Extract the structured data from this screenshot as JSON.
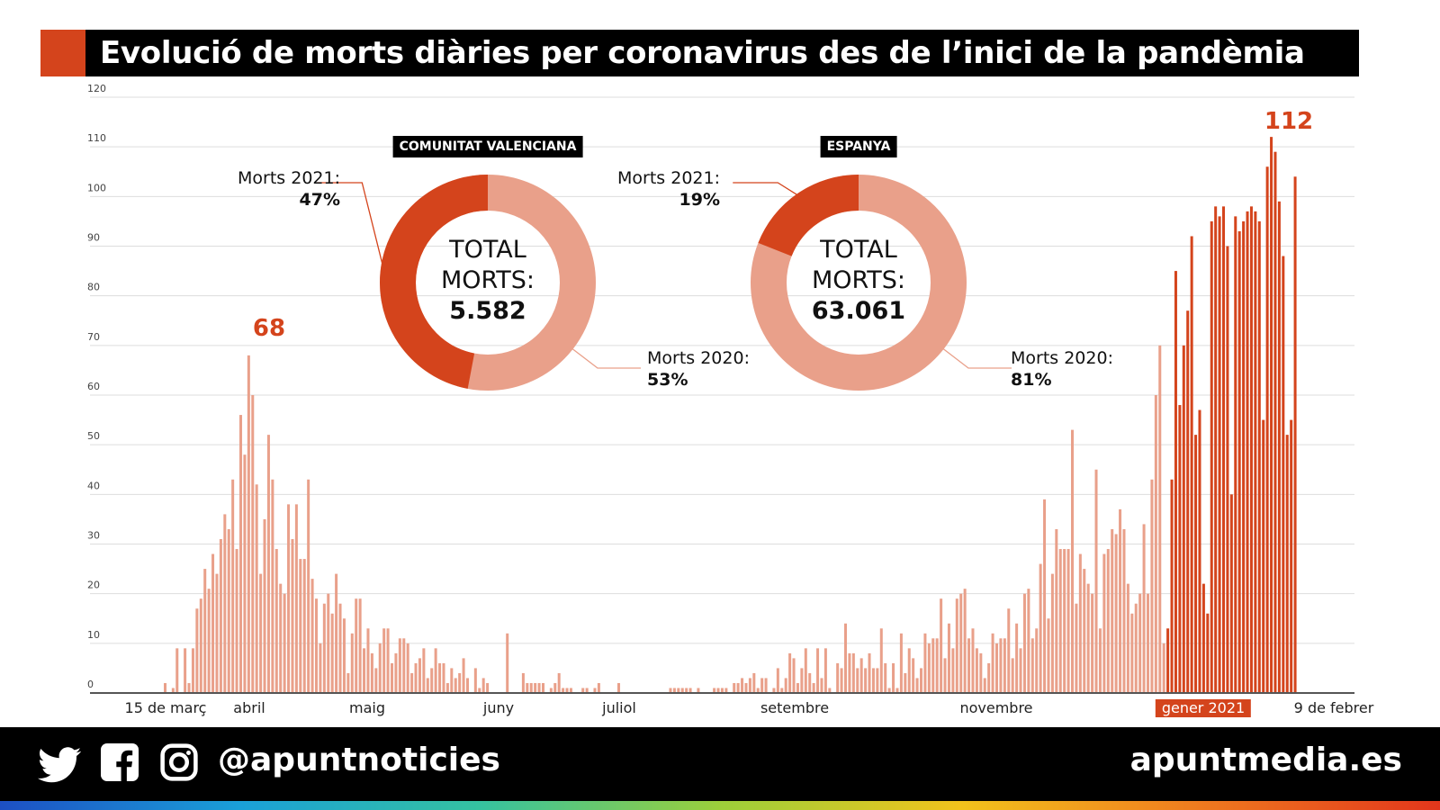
{
  "title": "Evolució de morts diàries per coronavirus des de l’inici de la pandèmia",
  "chart_data": {
    "type": "bar",
    "title": "Evolució de morts diàries per coronavirus des de l’inici de la pandèmia",
    "ylim": [
      0,
      120
    ],
    "yticks": [
      0,
      10,
      20,
      30,
      40,
      50,
      60,
      70,
      80,
      90,
      100,
      110,
      120
    ],
    "xlabels": [
      "15 de març",
      "abril",
      "maig",
      "juny",
      "juliol",
      "setembre",
      "novembre",
      "gener 2021",
      "9 de febrer"
    ],
    "peak_labels": [
      "68",
      "112"
    ],
    "series": [
      {
        "name": "2020",
        "color": "#e9a08a",
        "values": [
          2,
          0,
          1,
          9,
          0,
          9,
          2,
          9,
          17,
          19,
          25,
          21,
          28,
          24,
          31,
          36,
          33,
          43,
          29,
          56,
          48,
          68,
          60,
          42,
          24,
          35,
          52,
          43,
          29,
          22,
          20,
          38,
          31,
          38,
          27,
          27,
          43,
          23,
          19,
          10,
          18,
          20,
          16,
          24,
          18,
          15,
          4,
          12,
          19,
          19,
          9,
          13,
          8,
          5,
          10,
          13,
          13,
          6,
          8,
          11,
          11,
          10,
          4,
          6,
          7,
          9,
          3,
          5,
          9,
          6,
          6,
          2,
          5,
          3,
          4,
          7,
          3,
          0,
          5,
          1,
          3,
          2,
          0,
          0,
          0,
          0,
          12,
          0,
          0,
          0,
          4,
          2,
          2,
          2,
          2,
          2,
          0,
          1,
          2,
          4,
          1,
          1,
          1,
          0,
          0,
          1,
          1,
          0,
          1,
          2,
          0,
          0,
          0,
          0,
          2,
          0,
          0,
          0,
          0,
          0,
          0,
          0,
          0,
          0,
          0,
          0,
          0,
          1,
          1,
          1,
          1,
          1,
          1,
          0,
          1,
          0,
          0,
          0,
          1,
          1,
          1,
          1,
          0,
          2,
          2,
          3,
          2,
          3,
          4,
          1,
          3,
          3,
          0,
          1,
          5,
          1,
          3,
          8,
          7,
          2,
          5,
          9,
          4,
          2,
          9,
          3,
          9,
          1,
          0,
          6,
          5,
          14,
          8,
          8,
          5,
          7,
          5,
          8,
          5,
          5,
          13,
          6,
          1,
          6,
          1,
          12,
          4,
          9,
          7,
          3,
          5,
          12,
          10,
          11,
          11,
          19,
          7,
          14,
          9,
          19,
          20,
          21,
          11,
          13,
          9,
          8,
          3,
          6,
          12,
          10,
          11,
          11,
          17,
          7,
          14,
          9,
          20,
          21,
          11,
          13,
          26,
          39,
          15,
          24,
          33,
          29,
          29,
          29,
          53,
          18,
          28,
          25,
          22,
          20,
          45,
          13,
          28,
          29,
          33,
          32,
          37,
          33,
          22,
          16,
          18,
          20,
          34,
          20,
          43,
          60,
          70,
          10
        ]
      },
      {
        "name": "2021",
        "color": "#d4441c",
        "values": [
          13,
          43,
          85,
          58,
          70,
          77,
          92,
          52,
          57,
          22,
          16,
          95,
          98,
          96,
          98,
          90,
          40,
          96,
          93,
          95,
          97,
          98,
          97,
          95,
          55,
          106,
          112,
          109,
          99,
          88,
          52,
          55,
          104
        ]
      }
    ],
    "donuts": [
      {
        "title": "COMUNITAT VALENCIANA",
        "center_line1": "TOTAL",
        "center_line2": "MORTS:",
        "total": "5.582",
        "label_2021": "Morts 2021:",
        "pct_2021": "47%",
        "label_2020": "Morts 2020:",
        "pct_2020": "53%",
        "share_2021": 47
      },
      {
        "title": "ESPANYA",
        "center_line1": "TOTAL",
        "center_line2": "MORTS:",
        "total": "63.061",
        "label_2021": "Morts 2021:",
        "pct_2021": "19%",
        "label_2020": "Morts 2020:",
        "pct_2020": "81%",
        "share_2021": 19
      }
    ]
  },
  "footer": {
    "handle": "@apuntnoticies",
    "site": "apuntmedia.es",
    "icons": [
      "twitter-icon",
      "facebook-icon",
      "instagram-icon"
    ]
  },
  "colors": {
    "accent": "#d4441c",
    "light": "#e9a08a"
  }
}
